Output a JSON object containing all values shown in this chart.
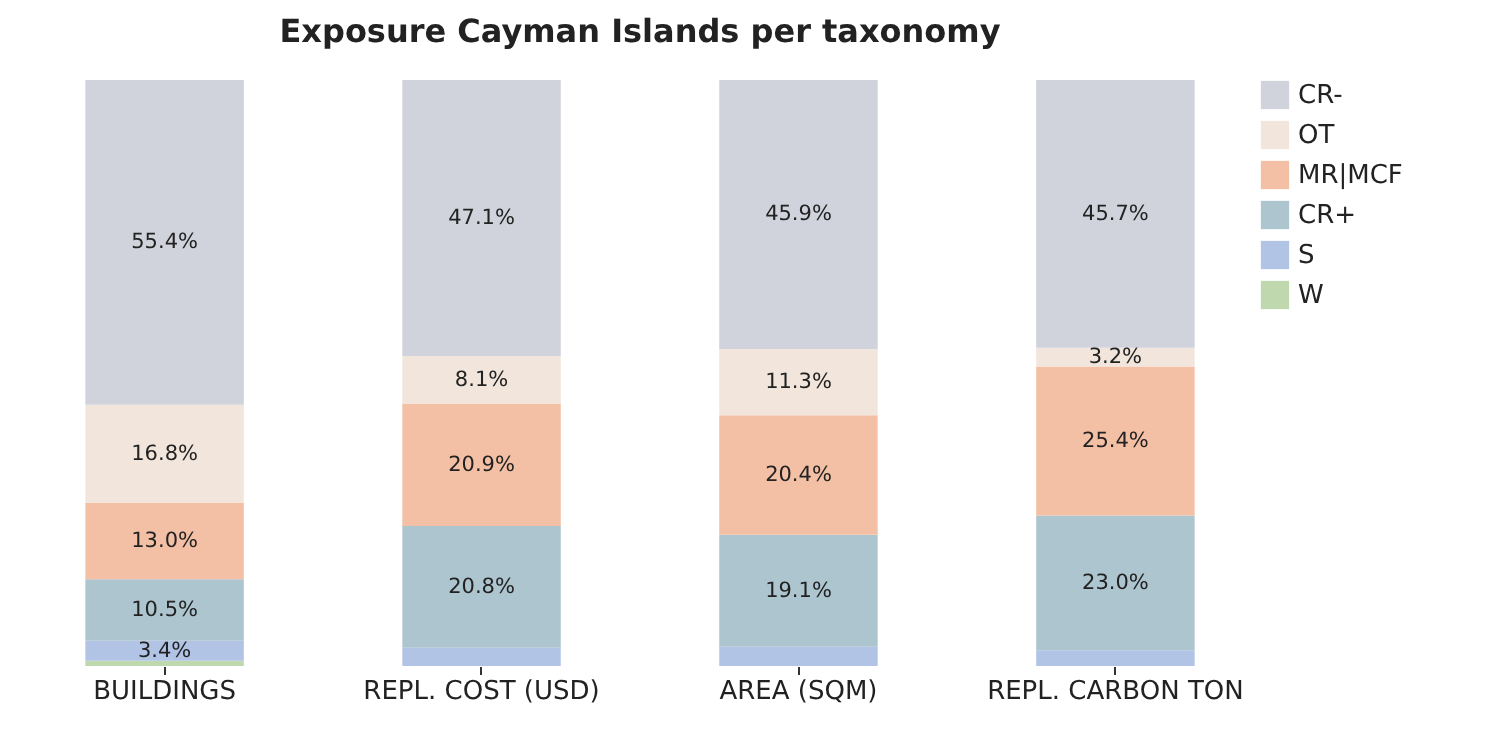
{
  "chart_data": {
    "type": "bar",
    "title": "Exposure Cayman Islands per taxonomy",
    "categories": [
      "BUILDINGS",
      "REPL. COST (USD)",
      "AREA (SQM)",
      "REPL. CARBON TON"
    ],
    "stacked": true,
    "ylim": [
      0,
      100
    ],
    "tick_labels": "x",
    "legend": "top right",
    "grid": false,
    "series": [
      {
        "name": "W",
        "color": "#c0d8ae",
        "values": [
          0.9,
          null,
          null,
          null
        ],
        "value_labels": [
          null,
          null,
          null,
          null
        ]
      },
      {
        "name": "S",
        "color": "#b2c4e6",
        "values": [
          3.4,
          3.1,
          3.3,
          2.7
        ],
        "value_labels": [
          "3.4%",
          null,
          null,
          null
        ]
      },
      {
        "name": "CR+",
        "color": "#adc5cf",
        "values": [
          10.5,
          20.8,
          19.1,
          23.0
        ],
        "value_labels": [
          "10.5%",
          "20.8%",
          "19.1%",
          "23.0%"
        ]
      },
      {
        "name": "MR|MCF",
        "color": "#f4c0a5",
        "values": [
          13.0,
          20.9,
          20.4,
          25.4
        ],
        "value_labels": [
          "13.0%",
          "20.9%",
          "20.4%",
          "25.4%"
        ]
      },
      {
        "name": "OT",
        "color": "#f2e6dc",
        "values": [
          16.8,
          8.1,
          11.3,
          3.2
        ],
        "value_labels": [
          "16.8%",
          "8.1%",
          "11.3%",
          "3.2%"
        ]
      },
      {
        "name": "CR-",
        "color": "#d0d3db",
        "values": [
          55.4,
          47.1,
          45.9,
          45.7
        ],
        "value_labels": [
          "55.4%",
          "47.1%",
          "45.9%",
          "45.7%"
        ]
      }
    ]
  }
}
